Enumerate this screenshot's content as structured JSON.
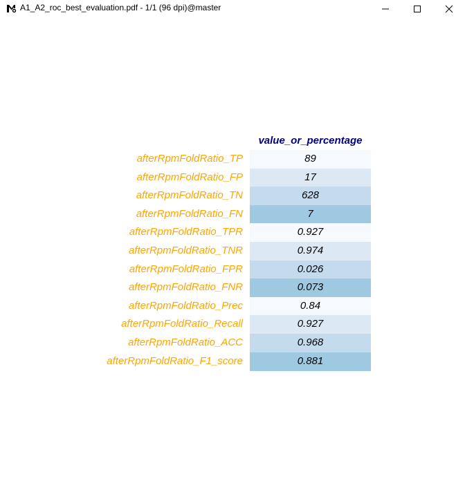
{
  "window": {
    "title": "A1_A2_roc_best_evaluation.pdf - 1/1 (96 dpi)@master",
    "app_icon": "mupdf-icon",
    "controls": [
      "minimize-icon",
      "maximize-icon",
      "close-icon"
    ]
  },
  "table": {
    "column_header": "value_or_percentage",
    "rows": [
      {
        "label": "afterRpmFoldRatio_TP",
        "value": "89",
        "shade": "#f6fafe"
      },
      {
        "label": "afterRpmFoldRatio_FP",
        "value": "17",
        "shade": "#dce9f5"
      },
      {
        "label": "afterRpmFoldRatio_TN",
        "value": "628",
        "shade": "#c4daed"
      },
      {
        "label": "afterRpmFoldRatio_FN",
        "value": "7",
        "shade": "#9fc8e1"
      },
      {
        "label": "afterRpmFoldRatio_TPR",
        "value": "0.927",
        "shade": "#f6fafe"
      },
      {
        "label": "afterRpmFoldRatio_TNR",
        "value": "0.974",
        "shade": "#dce9f5"
      },
      {
        "label": "afterRpmFoldRatio_FPR",
        "value": "0.026",
        "shade": "#c4daed"
      },
      {
        "label": "afterRpmFoldRatio_FNR",
        "value": "0.073",
        "shade": "#9fc8e1"
      },
      {
        "label": "afterRpmFoldRatio_Prec",
        "value": "0.84",
        "shade": "#f6fafe"
      },
      {
        "label": "afterRpmFoldRatio_Recall",
        "value": "0.927",
        "shade": "#dce9f5"
      },
      {
        "label": "afterRpmFoldRatio_ACC",
        "value": "0.968",
        "shade": "#c4daed"
      },
      {
        "label": "afterRpmFoldRatio_F1_score",
        "value": "0.881",
        "shade": "#9fc8e1"
      }
    ]
  },
  "colors": {
    "header_text": "#000080",
    "row_label_text": "#ffa500",
    "cell_text": "#000000"
  }
}
